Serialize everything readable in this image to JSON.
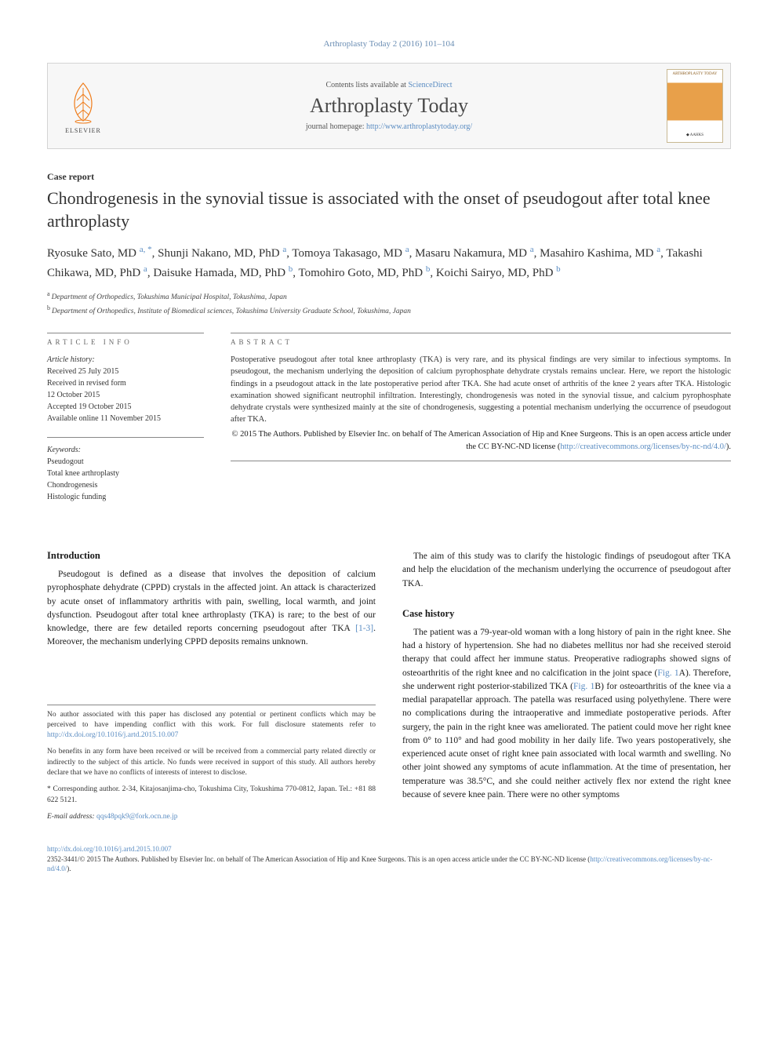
{
  "header_ref": "Arthroplasty Today 2 (2016) 101–104",
  "banner": {
    "contents_prefix": "Contents lists available at ",
    "contents_link": "ScienceDirect",
    "journal": "Arthroplasty Today",
    "homepage_prefix": "journal homepage: ",
    "homepage_url": "http://www.arthroplastytoday.org/",
    "publisher_word": "ELSEVIER",
    "cover_label": "ARTHROPLASTY TODAY",
    "cover_society": "◆ AAHKS"
  },
  "article_type": "Case report",
  "title": "Chondrogenesis in the synovial tissue is associated with the onset of pseudogout after total knee arthroplasty",
  "authors_html": "Ryosuke Sato, MD |a, *|, Shunji Nakano, MD, PhD |a|, Tomoya Takasago, MD |a|, Masaru Nakamura, MD |a|, Masahiro Kashima, MD |a|, Takashi Chikawa, MD, PhD |a|, Daisuke Hamada, MD, PhD |b|, Tomohiro Goto, MD, PhD |b|, Koichi Sairyo, MD, PhD |b|",
  "affiliations": [
    {
      "sup": "a",
      "text": "Department of Orthopedics, Tokushima Municipal Hospital, Tokushima, Japan"
    },
    {
      "sup": "b",
      "text": "Department of Orthopedics, Institute of Biomedical sciences, Tokushima University Graduate School, Tokushima, Japan"
    }
  ],
  "info": {
    "head": "ARTICLE INFO",
    "history_label": "Article history:",
    "history": [
      "Received 25 July 2015",
      "Received in revised form",
      "12 October 2015",
      "Accepted 19 October 2015",
      "Available online 11 November 2015"
    ],
    "keywords_label": "Keywords:",
    "keywords": [
      "Pseudogout",
      "Total knee arthroplasty",
      "Chondrogenesis",
      "Histologic funding"
    ]
  },
  "abstract": {
    "head": "ABSTRACT",
    "text": "Postoperative pseudogout after total knee arthroplasty (TKA) is very rare, and its physical findings are very similar to infectious symptoms. In pseudogout, the mechanism underlying the deposition of calcium pyrophosphate dehydrate crystals remains unclear. Here, we report the histologic findings in a pseudogout attack in the late postoperative period after TKA. She had acute onset of arthritis of the knee 2 years after TKA. Histologic examination showed significant neutrophil infiltration. Interestingly, chondrogenesis was noted in the synovial tissue, and calcium pyrophosphate dehydrate crystals were synthesized mainly at the site of chondrogenesis, suggesting a potential mechanism underlying the occurrence of pseudogout after TKA.",
    "copyright": "© 2015 The Authors. Published by Elsevier Inc. on behalf of The American Association of Hip and Knee Surgeons. This is an open access article under the CC BY-NC-ND license (",
    "license_url": "http://creativecommons.org/licenses/by-nc-nd/4.0/",
    "close": ")."
  },
  "body": {
    "intro_title": "Introduction",
    "intro_p1a": "Pseudogout is defined as a disease that involves the deposition of calcium pyrophosphate dehydrate (CPPD) crystals in the affected joint. An attack is characterized by acute onset of inflammatory arthritis with pain, swelling, local warmth, and joint dysfunction. Pseudogout after total knee arthroplasty (TKA) is rare; to the best of our knowledge, there are few detailed reports concerning pseudogout after TKA ",
    "intro_refs": "[1-3]",
    "intro_p1b": ". Moreover, the mechanism underlying CPPD deposits remains unknown.",
    "aim_p": "The aim of this study was to clarify the histologic findings of pseudogout after TKA and help the elucidation of the mechanism underlying the occurrence of pseudogout after TKA.",
    "case_title": "Case history",
    "case_p_a": "The patient was a 79-year-old woman with a long history of pain in the right knee. She had a history of hypertension. She had no diabetes mellitus nor had she received steroid therapy that could affect her immune status. Preoperative radiographs showed signs of osteoarthritis of the right knee and no calcification in the joint space (",
    "fig1a": "Fig. 1",
    "case_p_b": "A). Therefore, she underwent right posterior-stabilized TKA (",
    "fig1b": "Fig. 1",
    "case_p_c": "B) for osteoarthritis of the knee via a medial parapatellar approach. The patella was resurfaced using polyethylene. There were no complications during the intraoperative and immediate postoperative periods. After surgery, the pain in the right knee was ameliorated. The patient could move her right knee from 0° to 110° and had good mobility in her daily life. Two years postoperatively, she experienced acute onset of right knee pain associated with local warmth and swelling. No other joint showed any symptoms of acute inflammation. At the time of presentation, her temperature was 38.5°C, and she could neither actively flex nor extend the right knee because of severe knee pain. There were no other symptoms"
  },
  "footnotes": {
    "coi_a": "No author associated with this paper has disclosed any potential or pertinent conflicts which may be perceived to have impending conflict with this work. For full disclosure statements refer to ",
    "coi_url": "http://dx.doi.org/10.1016/j.artd.2015.10.007",
    "benefits": "No benefits in any form have been received or will be received from a commercial party related directly or indirectly to the subject of this article. No funds were received in support of this study. All authors hereby declare that we have no conflicts of interests of interest to disclose.",
    "corr": "* Corresponding author. 2-34, Kitajosanjima-cho, Tokushima City, Tokushima 770-0812, Japan. Tel.: +81 88 622 5121.",
    "email_label": "E-mail address: ",
    "email": "qqs48pqk9@fork.ocn.ne.jp"
  },
  "footer": {
    "doi": "http://dx.doi.org/10.1016/j.artd.2015.10.007",
    "issn_line_a": "2352-3441/© 2015 The Authors. Published by Elsevier Inc. on behalf of The American Association of Hip and Knee Surgeons. This is an open access article under the CC BY-NC-ND license (",
    "issn_url": "http://creativecommons.org/licenses/by-nc-nd/4.0/",
    "issn_line_b": ")."
  },
  "colors": {
    "link": "#5a8cc2",
    "text": "#1a1a1a",
    "rule": "#888888",
    "banner_bg": "#f7f7f7",
    "elsevier_orange": "#ef7c1a"
  }
}
